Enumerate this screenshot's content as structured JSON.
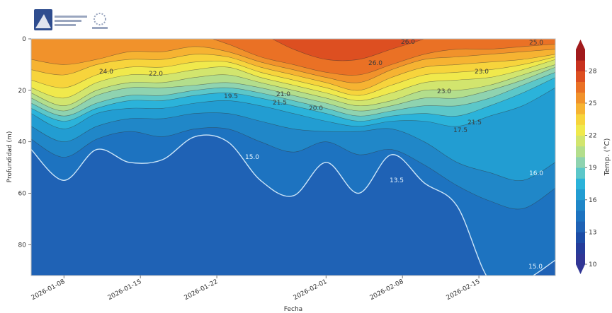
{
  "colors": {
    "levels": [
      "#313695",
      "#253c9a",
      "#1c4ca6",
      "#1f62b5",
      "#1d73c0",
      "#2087c8",
      "#229dd2",
      "#2bb3da",
      "#5cc7c9",
      "#8fd3b0",
      "#b3de8c",
      "#d2e56e",
      "#f0e94c",
      "#f7d43c",
      "#f6b332",
      "#f1922b",
      "#ea7125",
      "#dd4f21",
      "#c8321f",
      "#a11a1c"
    ],
    "isoline": "#333333",
    "isoline_light": "#dff3ff",
    "frame": "#cccccc"
  },
  "logo": {
    "icon": "institution-logo-icon",
    "seal": "sun-seal-icon"
  },
  "chart_data": {
    "type": "heatmap",
    "variant": "filled-contour",
    "xlabel": "Fecha",
    "ylabel": "Profundidad (m)",
    "x_range": [
      "2026-01-05",
      "2026-02-22"
    ],
    "y_range": [
      0,
      92
    ],
    "y_inverted": true,
    "x_ticks": [
      "2026-01-08",
      "2026-01-15",
      "2026-01-22",
      "2026-02-01",
      "2026-02-08",
      "2026-02-15"
    ],
    "y_ticks": [
      0,
      20,
      40,
      60,
      80
    ],
    "colorbar": {
      "label": "Temp. (°C)",
      "range": [
        10,
        30
      ],
      "ticks": [
        10,
        13,
        16,
        19,
        22,
        25,
        28
      ],
      "extend": "both"
    },
    "levels": [
      10,
      11,
      12,
      13,
      14,
      15,
      16,
      17,
      18,
      19,
      20,
      21,
      22,
      23,
      24,
      25,
      26,
      27,
      28,
      29,
      30
    ],
    "isotherm_depths": {
      "dates": [
        "2026-01-05",
        "2026-01-08",
        "2026-01-11",
        "2026-01-14",
        "2026-01-17",
        "2026-01-20",
        "2026-01-23",
        "2026-01-26",
        "2026-01-29",
        "2026-02-01",
        "2026-02-04",
        "2026-02-07",
        "2026-02-10",
        "2026-02-13",
        "2026-02-16",
        "2026-02-19",
        "2026-02-22"
      ],
      "series": [
        {
          "isotherm": 27,
          "depth": [
            -5,
            -5,
            -5,
            -5,
            -5,
            -5,
            -5,
            -2,
            4,
            8,
            8,
            4,
            0,
            -5,
            -5,
            -5,
            -5
          ]
        },
        {
          "isotherm": 26,
          "depth": [
            -5,
            -5,
            -5,
            -5,
            -5,
            -2,
            2,
            7,
            10,
            13,
            14,
            10,
            6,
            4,
            4,
            3,
            2
          ]
        },
        {
          "isotherm": 25,
          "depth": [
            8,
            10,
            8,
            5,
            5,
            3,
            5,
            9,
            12,
            15,
            17,
            12,
            8,
            7,
            6,
            5,
            4
          ]
        },
        {
          "isotherm": 24,
          "depth": [
            12,
            14,
            10,
            8,
            8,
            6,
            7,
            11,
            14,
            17,
            20,
            15,
            11,
            10,
            9,
            8,
            6
          ]
        },
        {
          "isotherm": 23,
          "depth": [
            16,
            19,
            14,
            11,
            11,
            9,
            9,
            13,
            16,
            19,
            22,
            18,
            14,
            13,
            12,
            10,
            7
          ]
        },
        {
          "isotherm": 22,
          "depth": [
            19,
            23,
            17,
            14,
            14,
            12,
            11,
            15,
            18,
            21,
            24,
            21,
            17,
            16,
            15,
            12,
            8
          ]
        },
        {
          "isotherm": 21,
          "depth": [
            21,
            26,
            20,
            17,
            17,
            15,
            14,
            17,
            20,
            23,
            26,
            24,
            20,
            20,
            18,
            14,
            10
          ]
        },
        {
          "isotherm": 20,
          "depth": [
            23,
            28,
            22,
            19,
            19,
            18,
            17,
            19,
            22,
            25,
            28,
            26,
            23,
            23,
            20,
            16,
            11
          ]
        },
        {
          "isotherm": 19,
          "depth": [
            25,
            30,
            25,
            22,
            22,
            20,
            19,
            21,
            24,
            27,
            30,
            28,
            26,
            26,
            23,
            18,
            13
          ]
        },
        {
          "isotherm": 18,
          "depth": [
            27,
            32,
            27,
            24,
            24,
            22,
            21,
            23,
            26,
            29,
            32,
            30,
            29,
            30,
            26,
            21,
            15
          ]
        },
        {
          "isotherm": 17,
          "depth": [
            29,
            35,
            29,
            27,
            27,
            25,
            24,
            26,
            29,
            32,
            34,
            32,
            32,
            34,
            30,
            26,
            19
          ]
        },
        {
          "isotherm": 16,
          "depth": [
            34,
            40,
            34,
            31,
            31,
            29,
            29,
            32,
            35,
            36,
            36,
            35,
            40,
            48,
            52,
            55,
            48
          ]
        },
        {
          "isotherm": 15,
          "depth": [
            39,
            46,
            39,
            36,
            38,
            35,
            35,
            40,
            44,
            40,
            45,
            43,
            49,
            57,
            63,
            66,
            58
          ]
        },
        {
          "isotherm": 14,
          "depth": [
            43,
            55,
            43,
            48,
            47,
            38,
            40,
            55,
            61,
            48,
            60,
            45,
            56,
            65,
            94,
            94,
            86
          ]
        }
      ]
    },
    "contour_labels": [
      "24.0",
      "22.0",
      "19.5",
      "21.0",
      "20.0",
      "26.0",
      "26.0",
      "25.0",
      "23.0",
      "21.5",
      "21.5",
      "17.5",
      "15.0",
      "15.0",
      "13.5",
      "16.0",
      "23.0"
    ]
  }
}
